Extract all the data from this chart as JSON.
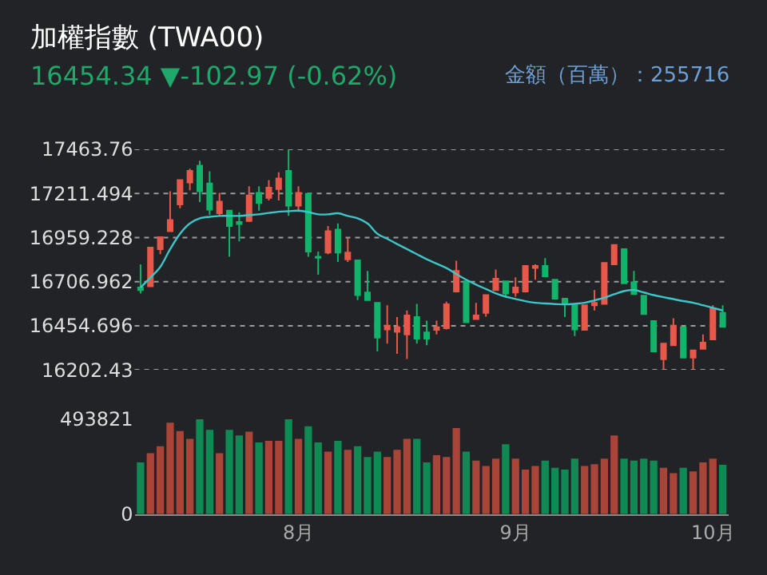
{
  "chart_data": [
    {
      "type": "candlestick",
      "title": "加權指數 (TWA00)",
      "subtitle": "16454.34 ▼-102.97 (-0.62%)",
      "annotations": [
        "金額（百萬）：255716"
      ],
      "ylim": [
        16202.43,
        17463.76
      ],
      "yticks": [
        16202.43,
        16454.696,
        16706.962,
        16959.228,
        17211.494,
        17463.76
      ],
      "grid": "y",
      "tick_labels": "y",
      "series": [
        {
          "type": "candlestick",
          "ohlc": [
            [
              16674,
              16806,
              16639,
              16659
            ],
            [
              16680,
              16902,
              16680,
              16902
            ],
            [
              16893,
              16966,
              16864,
              16961
            ],
            [
              16996,
              17224,
              16996,
              17060
            ],
            [
              17148,
              17288,
              17127,
              17288
            ],
            [
              17274,
              17353,
              17230,
              17341
            ],
            [
              17370,
              17399,
              17162,
              17224
            ],
            [
              17268,
              17338,
              17089,
              17119
            ],
            [
              17098,
              17215,
              17083,
              17165
            ],
            [
              17113,
              17113,
              16849,
              17025
            ],
            [
              17048,
              17104,
              16937,
              17037
            ],
            [
              17054,
              17253,
              17048,
              17200
            ],
            [
              17215,
              17253,
              17113,
              17157
            ],
            [
              17186,
              17288,
              17171,
              17244
            ],
            [
              17236,
              17332,
              17171,
              17297
            ],
            [
              17341,
              17463,
              17083,
              17142
            ],
            [
              17142,
              17253,
              17113,
              17215
            ],
            [
              17209,
              17209,
              16849,
              16879
            ],
            [
              16849,
              16879,
              16747,
              16844
            ],
            [
              16873,
              17025,
              16864,
              16996
            ],
            [
              17005,
              17040,
              16820,
              16873
            ],
            [
              16835,
              16958,
              16820,
              16873
            ],
            [
              16829,
              16829,
              16601,
              16630
            ],
            [
              16645,
              16768,
              16601,
              16601
            ],
            [
              16586,
              16586,
              16308,
              16387
            ],
            [
              16434,
              16572,
              16352,
              16455
            ],
            [
              16420,
              16504,
              16294,
              16446
            ],
            [
              16405,
              16542,
              16265,
              16513
            ],
            [
              16504,
              16580,
              16352,
              16381
            ],
            [
              16417,
              16484,
              16343,
              16381
            ],
            [
              16431,
              16484,
              16405,
              16446
            ],
            [
              16440,
              16592,
              16434,
              16577
            ],
            [
              16651,
              16826,
              16645,
              16768
            ],
            [
              16709,
              16709,
              16475,
              16475
            ],
            [
              16493,
              16586,
              16493,
              16513
            ],
            [
              16528,
              16630,
              16507,
              16630
            ],
            [
              16659,
              16776,
              16659,
              16724
            ],
            [
              16709,
              16709,
              16621,
              16639
            ],
            [
              16645,
              16732,
              16621,
              16674
            ],
            [
              16651,
              16797,
              16645,
              16797
            ],
            [
              16785,
              16806,
              16718,
              16797
            ],
            [
              16797,
              16841,
              16733,
              16738
            ],
            [
              16718,
              16718,
              16610,
              16610
            ],
            [
              16610,
              16610,
              16504,
              16586
            ],
            [
              16572,
              16572,
              16396,
              16434
            ],
            [
              16431,
              16572,
              16431,
              16572
            ],
            [
              16572,
              16659,
              16542,
              16586
            ],
            [
              16580,
              16814,
              16580,
              16814
            ],
            [
              16806,
              16917,
              16806,
              16917
            ],
            [
              16893,
              16893,
              16697,
              16697
            ],
            [
              16703,
              16768,
              16636,
              16636
            ],
            [
              16627,
              16627,
              16522,
              16522
            ],
            [
              16481,
              16481,
              16308,
              16308
            ],
            [
              16264,
              16352,
              16206,
              16352
            ],
            [
              16343,
              16498,
              16343,
              16455
            ],
            [
              16446,
              16446,
              16273,
              16273
            ],
            [
              16273,
              16314,
              16206,
              16314
            ],
            [
              16323,
              16405,
              16323,
              16358
            ],
            [
              16376,
              16572,
              16376,
              16554
            ],
            [
              16528,
              16572,
              16449,
              16449
            ]
          ],
          "colors": [
            "#12b36a",
            "#e8584a",
            "#e8584a",
            "#e8584a",
            "#e8584a",
            "#e8584a",
            "#12b36a",
            "#12b36a",
            "#e8584a",
            "#12b36a",
            "#12b36a",
            "#e8584a",
            "#12b36a",
            "#e8584a",
            "#e8584a",
            "#12b36a",
            "#e8584a",
            "#12b36a",
            "#12b36a",
            "#e8584a",
            "#12b36a",
            "#e8584a",
            "#12b36a",
            "#12b36a",
            "#12b36a",
            "#e8584a",
            "#e8584a",
            "#e8584a",
            "#12b36a",
            "#12b36a",
            "#e8584a",
            "#e8584a",
            "#e8584a",
            "#12b36a",
            "#e8584a",
            "#e8584a",
            "#e8584a",
            "#12b36a",
            "#e8584a",
            "#e8584a",
            "#e8584a",
            "#12b36a",
            "#12b36a",
            "#12b36a",
            "#12b36a",
            "#e8584a",
            "#e8584a",
            "#e8584a",
            "#e8584a",
            "#12b36a",
            "#12b36a",
            "#12b36a",
            "#12b36a",
            "#e8584a",
            "#e8584a",
            "#12b36a",
            "#e8584a",
            "#e8584a",
            "#e8584a",
            "#12b36a"
          ]
        },
        {
          "type": "line",
          "color": "#3cc6c9",
          "values": [
            16674,
            16730,
            16791,
            16893,
            16981,
            17040,
            17069,
            17078,
            17083,
            17083,
            17083,
            17088,
            17092,
            17100,
            17107,
            17110,
            17113,
            17105,
            17092,
            17092,
            17098,
            17083,
            17069,
            17040,
            16981,
            16952,
            16922,
            16893,
            16864,
            16835,
            16810,
            16785,
            16750,
            16718,
            16690,
            16665,
            16640,
            16621,
            16608,
            16595,
            16586,
            16582,
            16579,
            16577,
            16580,
            16586,
            16600,
            16615,
            16635,
            16653,
            16659,
            16645,
            16630,
            16618,
            16607,
            16596,
            16586,
            16572,
            16557,
            16542
          ]
        }
      ]
    },
    {
      "type": "bar",
      "categories": [
        null,
        null,
        null,
        null,
        null,
        null,
        null,
        null,
        null,
        null,
        null,
        null,
        null,
        null,
        null,
        null,
        "8月",
        null,
        null,
        null,
        null,
        null,
        null,
        null,
        null,
        null,
        null,
        null,
        null,
        null,
        null,
        null,
        null,
        null,
        null,
        null,
        null,
        null,
        "9月",
        null,
        null,
        null,
        null,
        null,
        null,
        null,
        null,
        null,
        null,
        null,
        null,
        null,
        null,
        null,
        null,
        null,
        null,
        null,
        "10月",
        null
      ],
      "values": [
        269000,
        316000,
        353000,
        475000,
        431000,
        391000,
        493000,
        438000,
        316000,
        438000,
        409000,
        428000,
        372000,
        381000,
        381000,
        493000,
        391000,
        456000,
        372000,
        325000,
        381000,
        334000,
        353000,
        297000,
        325000,
        297000,
        334000,
        391000,
        391000,
        269000,
        306000,
        297000,
        447000,
        325000,
        278000,
        250000,
        288000,
        363000,
        288000,
        231000,
        250000,
        278000,
        241000,
        231000,
        288000,
        250000,
        259000,
        288000,
        409000,
        288000,
        278000,
        288000,
        278000,
        241000,
        213000,
        241000,
        222000,
        269000,
        288000,
        255716
      ],
      "colors": [
        "#0f8a55",
        "#a94438",
        "#a94438",
        "#a94438",
        "#a94438",
        "#a94438",
        "#0f8a55",
        "#0f8a55",
        "#a94438",
        "#0f8a55",
        "#0f8a55",
        "#a94438",
        "#0f8a55",
        "#a94438",
        "#a94438",
        "#0f8a55",
        "#a94438",
        "#0f8a55",
        "#0f8a55",
        "#a94438",
        "#0f8a55",
        "#a94438",
        "#0f8a55",
        "#0f8a55",
        "#0f8a55",
        "#a94438",
        "#a94438",
        "#a94438",
        "#0f8a55",
        "#0f8a55",
        "#a94438",
        "#a94438",
        "#a94438",
        "#0f8a55",
        "#a94438",
        "#a94438",
        "#a94438",
        "#0f8a55",
        "#a94438",
        "#a94438",
        "#a94438",
        "#0f8a55",
        "#0f8a55",
        "#0f8a55",
        "#0f8a55",
        "#a94438",
        "#a94438",
        "#a94438",
        "#a94438",
        "#0f8a55",
        "#0f8a55",
        "#0f8a55",
        "#0f8a55",
        "#a94438",
        "#a94438",
        "#0f8a55",
        "#a94438",
        "#a94438",
        "#a94438",
        "#0f8a55"
      ],
      "ylim": [
        0,
        493821
      ],
      "yticks": [
        0,
        493821
      ]
    }
  ]
}
